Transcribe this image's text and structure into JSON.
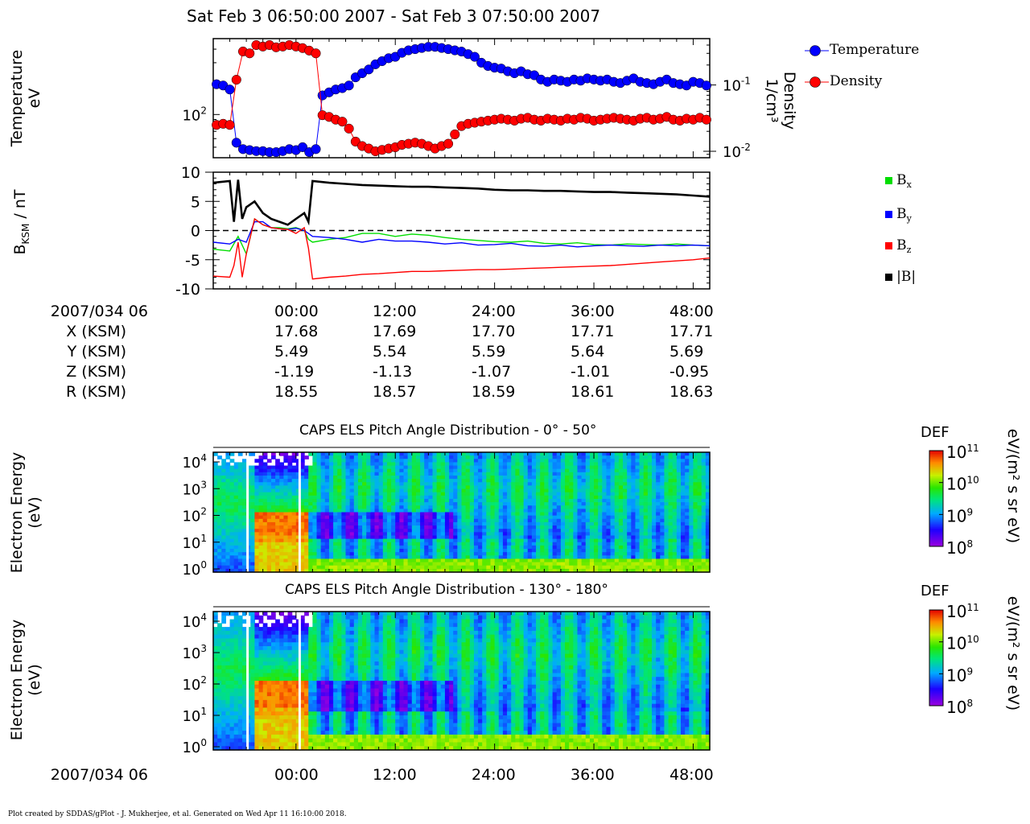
{
  "header": {
    "title": "Sat Feb 3 06:50:00 2007 - Sat Feb 3 07:50:00 2007"
  },
  "axis_labels": {
    "temperature": "Temperature",
    "temperature_unit": "eV",
    "density": "Density",
    "density_unit": "1/cm³",
    "b_field": "B",
    "b_field_sub": "KSM",
    "b_field_unit": " / nT",
    "energy": "Electron Energy",
    "energy_unit": "(eV)"
  },
  "ephemeris": {
    "date_label": "2007/034 06",
    "time_ticks": [
      "00:00",
      "12:00",
      "24:00",
      "36:00",
      "48:00"
    ],
    "rows": [
      {
        "label": "X (KSM)",
        "values": [
          "17.68",
          "17.69",
          "17.70",
          "17.71",
          "17.71"
        ]
      },
      {
        "label": "Y (KSM)",
        "values": [
          "5.49",
          "5.54",
          "5.59",
          "5.64",
          "5.69"
        ]
      },
      {
        "label": "Z (KSM)",
        "values": [
          "-1.19",
          "-1.13",
          "-1.07",
          "-1.01",
          "-0.95"
        ]
      },
      {
        "label": "R (KSM)",
        "values": [
          "18.55",
          "18.57",
          "18.59",
          "18.61",
          "18.63"
        ]
      }
    ],
    "bottom_date_label": "2007/034 06"
  },
  "legends": {
    "moments": [
      {
        "name": "Temperature",
        "color": "#0000ff"
      },
      {
        "name": "Density",
        "color": "#ff0000"
      }
    ],
    "bfield": [
      {
        "name": "B",
        "sub": "x",
        "color": "#00dd00"
      },
      {
        "name": "B",
        "sub": "y",
        "color": "#0000ff"
      },
      {
        "name": "B",
        "sub": "z",
        "color": "#ff0000"
      },
      {
        "name": "|B|",
        "sub": "",
        "color": "#000000"
      }
    ]
  },
  "spectrograms": [
    {
      "title": "CAPS ELS Pitch Angle Distribution - 0° - 50°",
      "cbar_title": "DEF",
      "cbar_unit": "eV/(m² s sr eV)"
    },
    {
      "title": "CAPS ELS Pitch Angle Distribution - 130° - 180°",
      "cbar_title": "DEF",
      "cbar_unit": "eV/(m² s sr eV)"
    }
  ],
  "footer": "Plot created by SDDAS/gPlot - J. Mukherjee, et al.  Generated on Wed Apr 11 16:10:00 2018.",
  "chart_data": [
    {
      "type": "scatter",
      "name": "moments",
      "x_unit": "minutes",
      "xlim": [
        -10,
        50
      ],
      "x_ticks": [
        0,
        12,
        24,
        36,
        48
      ],
      "y_left": {
        "label": "Temperature eV",
        "scale": "log",
        "range": [
          40,
          500
        ],
        "ticks": [
          {
            "value": 100,
            "label": "10",
            "exp": "2"
          }
        ]
      },
      "y_right": {
        "label": "Density 1/cm³",
        "scale": "log",
        "range": [
          0.008,
          0.5
        ],
        "ticks": [
          {
            "value": 0.1,
            "label": "10",
            "exp": "-1"
          },
          {
            "value": 0.01,
            "label": "10",
            "exp": "-2"
          }
        ]
      },
      "series": [
        {
          "name": "Temperature",
          "axis": "left",
          "color": "#0000ff",
          "x": [
            -9.6,
            -8.8,
            -8,
            -7.2,
            -6.4,
            -5.6,
            -4.8,
            -4,
            -3.2,
            -2.4,
            -1.6,
            -0.8,
            0,
            0.8,
            1.6,
            2.4,
            3.2,
            4,
            4.8,
            5.6,
            6.4,
            7.2,
            8,
            8.8,
            9.6,
            10.4,
            11.2,
            12,
            12.8,
            13.6,
            14.4,
            15.2,
            16,
            16.8,
            17.6,
            18.4,
            19.2,
            20,
            20.8,
            21.6,
            22.4,
            23.2,
            24,
            24.8,
            25.6,
            26.4,
            27.2,
            28,
            28.8,
            29.6,
            30.4,
            31.2,
            32,
            32.8,
            33.6,
            34.4,
            35.2,
            36,
            36.8,
            37.6,
            38.4,
            39.2,
            40,
            40.8,
            41.6,
            42.4,
            43.2,
            44,
            44.8,
            45.6,
            46.4,
            47.2,
            48,
            48.8,
            49.6
          ],
          "y": [
            190,
            185,
            170,
            55,
            48,
            47,
            46,
            46,
            45,
            45,
            46,
            48,
            47,
            50,
            45,
            48,
            150,
            160,
            170,
            175,
            185,
            220,
            240,
            260,
            290,
            310,
            330,
            340,
            370,
            390,
            400,
            410,
            420,
            420,
            410,
            400,
            390,
            380,
            360,
            340,
            300,
            280,
            270,
            265,
            250,
            240,
            250,
            235,
            230,
            210,
            200,
            210,
            205,
            200,
            210,
            205,
            215,
            210,
            205,
            210,
            200,
            195,
            205,
            215,
            200,
            195,
            190,
            200,
            210,
            195,
            190,
            185,
            200,
            195,
            185
          ]
        },
        {
          "name": "Density",
          "axis": "right",
          "color": "#ff0000",
          "x": [
            -9.6,
            -8.8,
            -8,
            -7.2,
            -6.4,
            -5.6,
            -4.8,
            -4,
            -3.2,
            -2.4,
            -1.6,
            -0.8,
            0,
            0.8,
            1.6,
            2.4,
            3.2,
            4,
            4.8,
            5.6,
            6.4,
            7.2,
            8,
            8.8,
            9.6,
            10.4,
            11.2,
            12,
            12.8,
            13.6,
            14.4,
            15.2,
            16,
            16.8,
            17.6,
            18.4,
            19.2,
            20,
            20.8,
            21.6,
            22.4,
            23.2,
            24,
            24.8,
            25.6,
            26.4,
            27.2,
            28,
            28.8,
            29.6,
            30.4,
            31.2,
            32,
            32.8,
            33.6,
            34.4,
            35.2,
            36,
            36.8,
            37.6,
            38.4,
            39.2,
            40,
            40.8,
            41.6,
            42.4,
            43.2,
            44,
            44.8,
            45.6,
            46.4,
            47.2,
            48,
            48.8,
            49.6
          ],
          "y": [
            0.025,
            0.026,
            0.025,
            0.12,
            0.32,
            0.3,
            0.4,
            0.38,
            0.4,
            0.37,
            0.38,
            0.4,
            0.38,
            0.36,
            0.33,
            0.3,
            0.035,
            0.033,
            0.03,
            0.028,
            0.022,
            0.014,
            0.012,
            0.011,
            0.01,
            0.0105,
            0.011,
            0.0115,
            0.0125,
            0.013,
            0.0135,
            0.013,
            0.012,
            0.011,
            0.012,
            0.013,
            0.018,
            0.024,
            0.026,
            0.027,
            0.028,
            0.029,
            0.03,
            0.031,
            0.03,
            0.029,
            0.031,
            0.032,
            0.03,
            0.029,
            0.031,
            0.03,
            0.029,
            0.031,
            0.03,
            0.032,
            0.031,
            0.029,
            0.03,
            0.031,
            0.032,
            0.031,
            0.03,
            0.029,
            0.031,
            0.032,
            0.03,
            0.031,
            0.033,
            0.03,
            0.029,
            0.031,
            0.03,
            0.032,
            0.03
          ]
        }
      ]
    },
    {
      "type": "line",
      "name": "magnetic_field",
      "xlim": [
        -10,
        50
      ],
      "ylim": [
        -10,
        10
      ],
      "y_ticks": [
        -10,
        -5,
        0,
        5,
        10
      ],
      "zero_line": "dashed",
      "series": [
        {
          "name": "Bx",
          "color": "#00dd00",
          "x": [
            -10,
            -8,
            -7,
            -6,
            -5,
            -4,
            -3,
            -2,
            -1,
            0,
            1,
            1.5,
            2,
            4,
            6,
            8,
            10,
            12,
            14,
            16,
            18,
            20,
            22,
            24,
            26,
            28,
            30,
            32,
            34,
            36,
            38,
            40,
            42,
            44,
            46,
            48,
            50
          ],
          "y": [
            -3.2,
            -3.5,
            -1,
            -4,
            2,
            1,
            0.5,
            0.5,
            0.3,
            0.5,
            0,
            -1.5,
            -2,
            -1.5,
            -1.2,
            -0.5,
            -0.5,
            -1,
            -0.6,
            -0.8,
            -1.2,
            -1.5,
            -1.7,
            -1.9,
            -2,
            -1.8,
            -2.2,
            -2.3,
            -2.1,
            -2.4,
            -2.5,
            -2.3,
            -2.4,
            -2.5,
            -2.3,
            -2.5,
            -2.6
          ]
        },
        {
          "name": "By",
          "color": "#0000ff",
          "x": [
            -10,
            -8,
            -7,
            -6,
            -5,
            -4,
            -3,
            -2,
            -1,
            0,
            1,
            1.5,
            2,
            4,
            6,
            8,
            10,
            12,
            14,
            16,
            18,
            20,
            22,
            24,
            26,
            28,
            30,
            32,
            34,
            36,
            38,
            40,
            42,
            44,
            46,
            48,
            50
          ],
          "y": [
            -2,
            -2.3,
            -1.5,
            -2,
            1.5,
            1.5,
            0.5,
            0.3,
            0.2,
            0.4,
            0,
            -0.5,
            -1,
            -1.2,
            -1.5,
            -2,
            -1.5,
            -1.8,
            -1.8,
            -2,
            -2.3,
            -2.1,
            -2.5,
            -2.4,
            -2.2,
            -2.6,
            -2.7,
            -2.5,
            -2.8,
            -2.6,
            -2.5,
            -2.6,
            -2.7,
            -2.5,
            -2.6,
            -2.5,
            -2.6
          ]
        },
        {
          "name": "Bz",
          "color": "#ff0000",
          "x": [
            -10,
            -8,
            -7.5,
            -7,
            -6.5,
            -6,
            -5,
            -4,
            -3,
            -2,
            -1,
            0,
            1,
            1.5,
            2,
            4,
            6,
            8,
            10,
            12,
            14,
            16,
            18,
            20,
            22,
            24,
            26,
            28,
            30,
            32,
            34,
            36,
            38,
            40,
            42,
            44,
            46,
            48,
            50
          ],
          "y": [
            -7.8,
            -8,
            -6,
            -2,
            -8,
            -4,
            2,
            1,
            0.5,
            0.3,
            0.2,
            -0.5,
            0.5,
            -3,
            -8.3,
            -8,
            -7.8,
            -7.5,
            -7.4,
            -7.2,
            -7,
            -7,
            -6.9,
            -6.8,
            -6.7,
            -6.7,
            -6.6,
            -6.5,
            -6.4,
            -6.3,
            -6.2,
            -6.1,
            -6,
            -5.8,
            -5.6,
            -5.4,
            -5.2,
            -5,
            -4.7
          ]
        },
        {
          "name": "|B|",
          "color": "#000000",
          "x": [
            -10,
            -8,
            -7.5,
            -7,
            -6.5,
            -6,
            -5,
            -4,
            -3,
            -2,
            -1,
            0,
            1,
            1.5,
            2,
            4,
            6,
            8,
            10,
            12,
            14,
            16,
            18,
            20,
            22,
            24,
            26,
            28,
            30,
            32,
            34,
            36,
            38,
            40,
            42,
            44,
            46,
            48,
            50
          ],
          "y": [
            8.2,
            8.5,
            1.5,
            8.7,
            2,
            4,
            5,
            3,
            2,
            1.5,
            1,
            2,
            3,
            1.5,
            8.5,
            8.2,
            8,
            7.8,
            7.7,
            7.6,
            7.5,
            7.5,
            7.4,
            7.3,
            7.2,
            7,
            6.9,
            6.9,
            6.8,
            6.8,
            6.7,
            6.6,
            6.6,
            6.5,
            6.4,
            6.3,
            6.2,
            6,
            5.8
          ]
        }
      ]
    },
    {
      "type": "heatmap",
      "name": "els_pad_0_50",
      "xlim": [
        -10,
        50
      ],
      "y_scale": "log",
      "y_ticks": [
        {
          "label": "10",
          "exp": "4"
        },
        {
          "label": "10",
          "exp": "3"
        },
        {
          "label": "10",
          "exp": "2"
        },
        {
          "label": "10",
          "exp": "1"
        },
        {
          "label": "10",
          "exp": "0"
        }
      ],
      "colorbar_ticks": [
        {
          "label": "10",
          "exp": "11"
        },
        {
          "label": "10",
          "exp": "10"
        },
        {
          "label": "10",
          "exp": "9"
        },
        {
          "label": "10",
          "exp": "8"
        }
      ]
    },
    {
      "type": "heatmap",
      "name": "els_pad_130_180",
      "xlim": [
        -10,
        50
      ],
      "y_scale": "log",
      "y_ticks": [
        {
          "label": "10",
          "exp": "4"
        },
        {
          "label": "10",
          "exp": "3"
        },
        {
          "label": "10",
          "exp": "2"
        },
        {
          "label": "10",
          "exp": "1"
        },
        {
          "label": "10",
          "exp": "0"
        }
      ],
      "colorbar_ticks": [
        {
          "label": "10",
          "exp": "11"
        },
        {
          "label": "10",
          "exp": "10"
        },
        {
          "label": "10",
          "exp": "9"
        },
        {
          "label": "10",
          "exp": "8"
        }
      ]
    }
  ]
}
